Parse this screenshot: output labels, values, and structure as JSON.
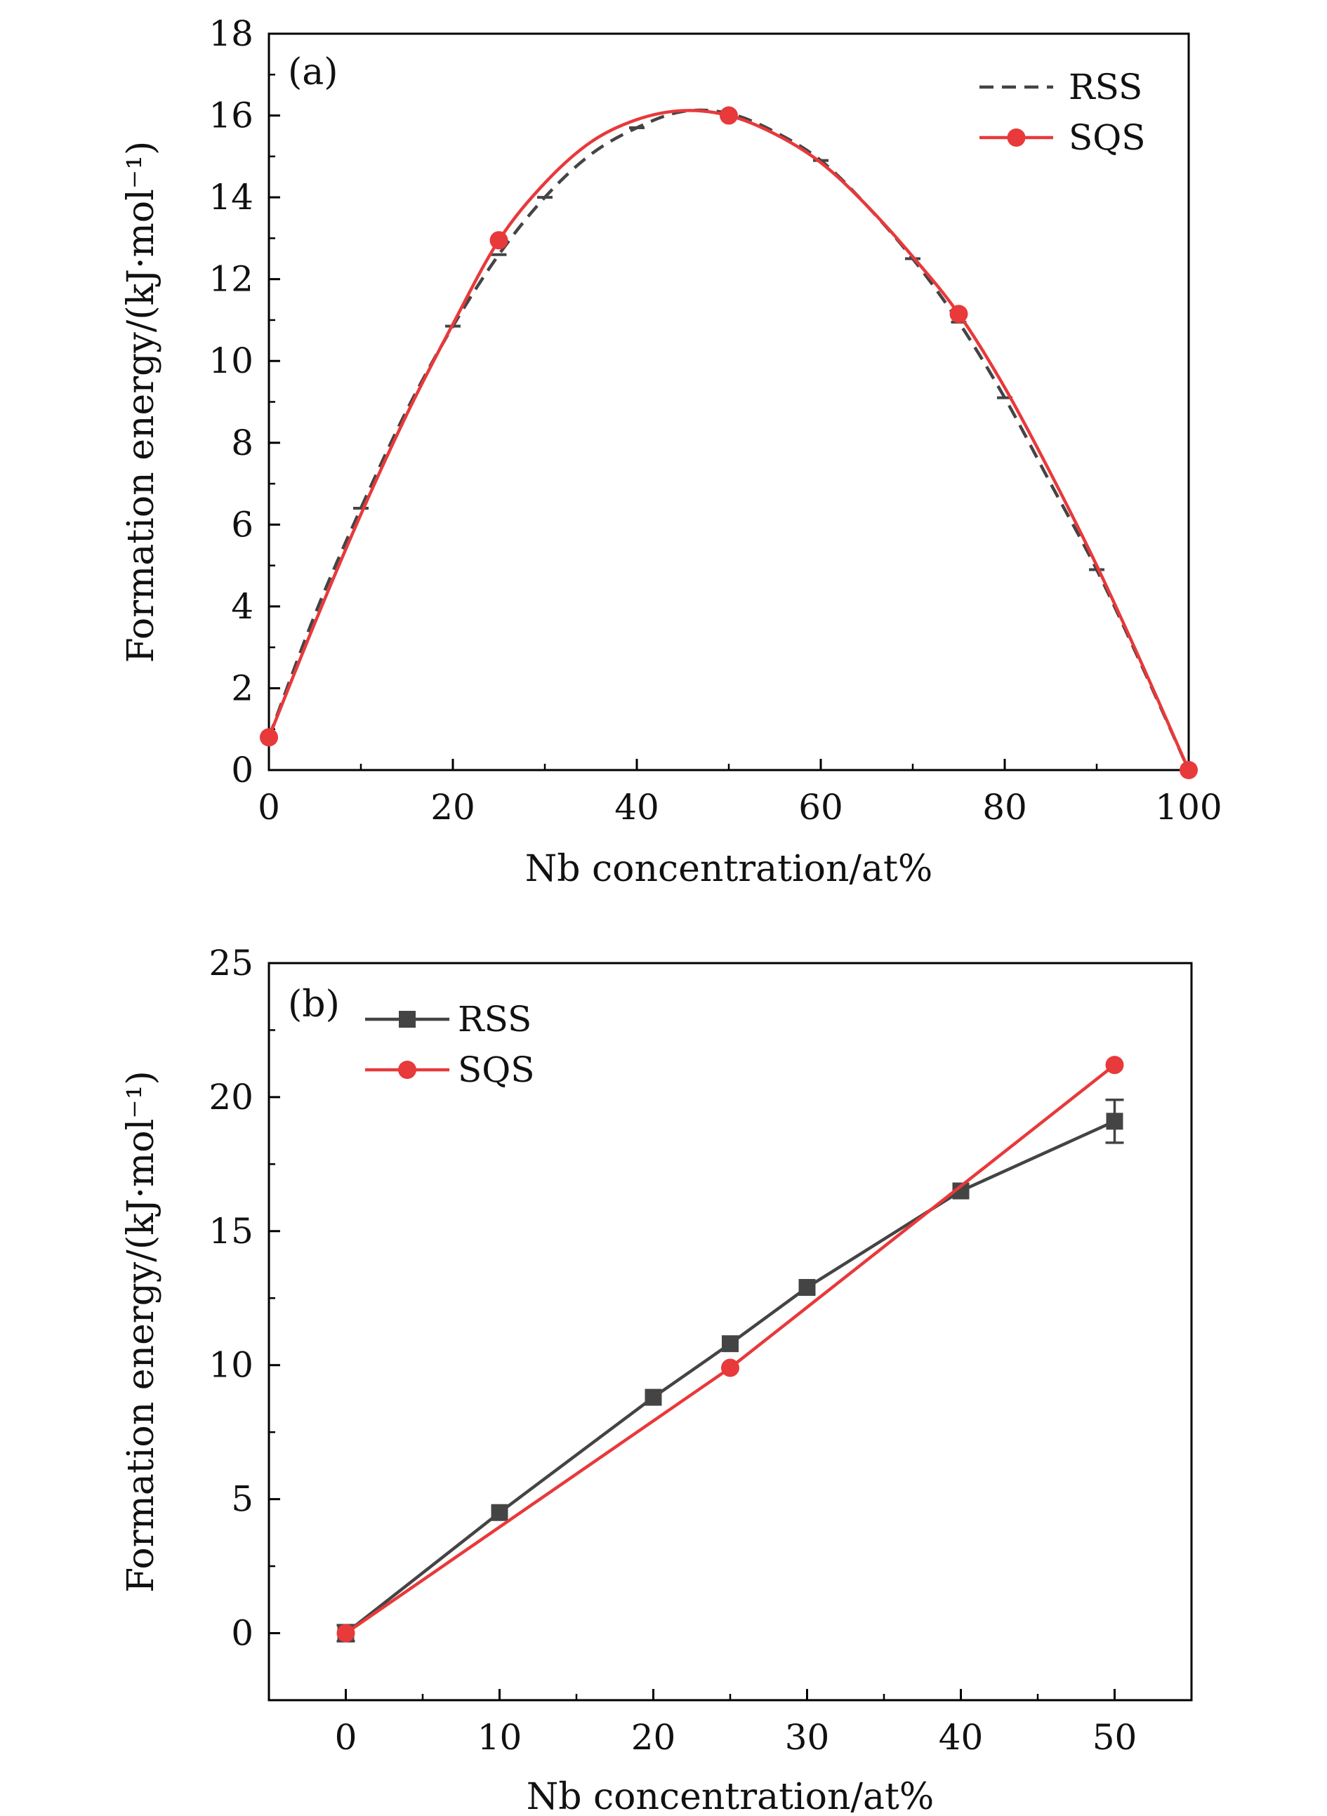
{
  "chart_data": [
    {
      "type": "line",
      "panel_label": "(a)",
      "xlabel": "Nb concentration/at%",
      "ylabel": "Formation energy/(kJ·mol⁻¹)",
      "xlim": [
        0,
        100
      ],
      "ylim": [
        0,
        18
      ],
      "xticks": [
        0,
        20,
        40,
        60,
        80,
        100
      ],
      "yticks": [
        0,
        2,
        4,
        6,
        8,
        10,
        12,
        14,
        16,
        18
      ],
      "legend_position": "top-right",
      "series": [
        {
          "name": "RSS",
          "style": "dashed",
          "color": "#444444",
          "marker": "errorbar",
          "points": [
            [
              0,
              0.8
            ],
            [
              10,
              6.4
            ],
            [
              20,
              10.85
            ],
            [
              25,
              12.6
            ],
            [
              30,
              14.0
            ],
            [
              40,
              15.7
            ],
            [
              50,
              16.05
            ],
            [
              60,
              14.9
            ],
            [
              70,
              12.5
            ],
            [
              75,
              10.95
            ],
            [
              80,
              9.1
            ],
            [
              90,
              4.9
            ],
            [
              100,
              0.0
            ]
          ],
          "curve": [
            [
              0,
              0.8
            ],
            [
              5,
              3.8
            ],
            [
              10,
              6.4
            ],
            [
              15,
              8.8
            ],
            [
              20,
              10.85
            ],
            [
              25,
              12.6
            ],
            [
              30,
              14.0
            ],
            [
              35,
              15.05
            ],
            [
              40,
              15.7
            ],
            [
              45,
              16.1
            ],
            [
              50,
              16.05
            ],
            [
              55,
              15.6
            ],
            [
              60,
              14.9
            ],
            [
              65,
              13.8
            ],
            [
              70,
              12.5
            ],
            [
              75,
              10.95
            ],
            [
              80,
              9.1
            ],
            [
              85,
              7.0
            ],
            [
              90,
              4.9
            ],
            [
              95,
              2.5
            ],
            [
              100,
              0.0
            ]
          ]
        },
        {
          "name": "SQS",
          "style": "solid",
          "color": "#e8393b",
          "marker": "circle",
          "points": [
            [
              0,
              0.8
            ],
            [
              25,
              12.95
            ],
            [
              50,
              16.0
            ],
            [
              75,
              11.15
            ],
            [
              100,
              0.0
            ]
          ],
          "curve": [
            [
              0,
              0.8
            ],
            [
              5,
              3.6
            ],
            [
              10,
              6.25
            ],
            [
              15,
              8.7
            ],
            [
              20,
              10.9
            ],
            [
              25,
              12.95
            ],
            [
              30,
              14.35
            ],
            [
              35,
              15.35
            ],
            [
              40,
              15.9
            ],
            [
              45,
              16.12
            ],
            [
              50,
              16.0
            ],
            [
              55,
              15.55
            ],
            [
              60,
              14.85
            ],
            [
              65,
              13.8
            ],
            [
              70,
              12.55
            ],
            [
              75,
              11.15
            ],
            [
              80,
              9.35
            ],
            [
              85,
              7.25
            ],
            [
              90,
              5.0
            ],
            [
              95,
              2.55
            ],
            [
              100,
              0.0
            ]
          ]
        }
      ]
    },
    {
      "type": "line",
      "panel_label": "(b)",
      "xlabel": "Nb concentration/at%",
      "ylabel": "Formation energy/(kJ·mol⁻¹)",
      "xlim": [
        -5,
        55
      ],
      "ylim": [
        -2.5,
        25
      ],
      "xticks": [
        0,
        10,
        20,
        30,
        40,
        50
      ],
      "yticks": [
        0,
        5,
        10,
        15,
        20,
        25
      ],
      "legend_position": "top-left",
      "series": [
        {
          "name": "RSS",
          "style": "solid",
          "color": "#444444",
          "marker": "square",
          "points": [
            [
              0,
              0.0
            ],
            [
              10,
              4.5
            ],
            [
              20,
              8.8
            ],
            [
              25,
              10.8
            ],
            [
              30,
              12.9
            ],
            [
              40,
              16.5
            ],
            [
              50,
              19.1
            ]
          ],
          "errors": [
            0.3,
            0.1,
            0.1,
            0.1,
            0.1,
            0.1,
            0.8
          ]
        },
        {
          "name": "SQS",
          "style": "solid",
          "color": "#e8393b",
          "marker": "circle",
          "points": [
            [
              0,
              0.0
            ],
            [
              25,
              9.9
            ],
            [
              50,
              21.2
            ]
          ],
          "errors": [
            0,
            0,
            0
          ]
        }
      ]
    }
  ]
}
